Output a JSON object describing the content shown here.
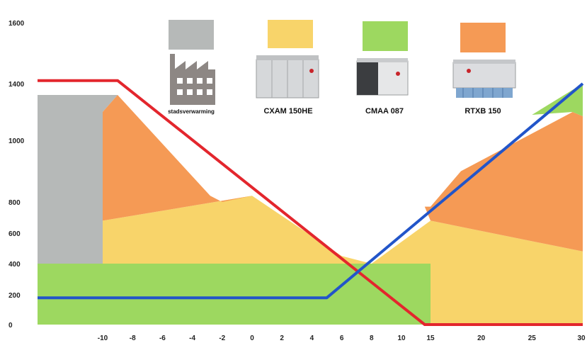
{
  "chart_data": {
    "type": "area",
    "title": "",
    "xlabel": "",
    "ylabel": "",
    "x_ticks": [
      -10,
      -8,
      -6,
      -4,
      -2,
      0,
      2,
      4,
      6,
      8,
      10,
      15,
      20,
      25,
      30
    ],
    "y_ticks": [
      0,
      200,
      400,
      600,
      800,
      1000,
      1400,
      1600
    ],
    "xlim": [
      -12,
      30
    ],
    "ylim": [
      0,
      1600
    ],
    "grid": false,
    "legend_position": "top",
    "legend": [
      {
        "label": "stadsverwarming",
        "color": "#b6b9b8",
        "icon": "factory-icon"
      },
      {
        "label": "CXAM 150HE",
        "color": "#f8d46a",
        "icon": "chiller-cxam-icon"
      },
      {
        "label": "CMAA 087",
        "color": "#9dd860",
        "icon": "chiller-cmaa-icon"
      },
      {
        "label": "RTXB 150",
        "color": "#f59a55",
        "icon": "chiller-rtxb-icon"
      }
    ],
    "areas": [
      {
        "label": "CMAA 087",
        "color": "#9dd860",
        "points": [
          [
            -12,
            0
          ],
          [
            15,
            0
          ],
          [
            15,
            400
          ],
          [
            -12,
            400
          ]
        ]
      },
      {
        "label": "CXAM 150HE",
        "color": "#f8d46a",
        "points": [
          [
            -10,
            400
          ],
          [
            -10,
            680
          ],
          [
            0,
            820
          ],
          [
            0,
            400
          ]
        ]
      },
      {
        "label": "CXAM 150HE",
        "color": "#f8d46a",
        "points": [
          [
            0,
            400
          ],
          [
            0,
            820
          ],
          [
            6,
            450
          ],
          [
            8,
            400
          ]
        ]
      },
      {
        "label": "CXAM 150HE",
        "color": "#f8d46a",
        "points": [
          [
            8,
            400
          ],
          [
            15,
            680
          ],
          [
            30,
            480
          ],
          [
            30,
            0
          ],
          [
            15,
            0
          ],
          [
            15,
            400
          ]
        ]
      },
      {
        "label": "stadsverwarming",
        "color": "#b6b9b8",
        "points": [
          [
            -12,
            400
          ],
          [
            -12,
            1320
          ],
          [
            -9,
            1320
          ],
          [
            -10,
            1200
          ],
          [
            -10,
            400
          ]
        ]
      },
      {
        "label": "RTXB 150",
        "color": "#f59a55",
        "points": [
          [
            -10,
            680
          ],
          [
            -10,
            1200
          ],
          [
            -9,
            1320
          ],
          [
            -2.8,
            820
          ],
          [
            -2,
            800
          ],
          [
            0,
            820
          ]
        ]
      },
      {
        "label": "RTXB 150",
        "color": "#f59a55",
        "points": [
          [
            15,
            770
          ],
          [
            18,
            900
          ],
          [
            29,
            1200
          ],
          [
            30,
            1170
          ],
          [
            30,
            480
          ],
          [
            15,
            680
          ],
          [
            14,
            770
          ]
        ]
      },
      {
        "label": "CMAA 087",
        "color": "#9dd860",
        "points": [
          [
            25,
            1180
          ],
          [
            30,
            1400
          ],
          [
            30,
            1170
          ],
          [
            29,
            1200
          ]
        ]
      }
    ],
    "series": [
      {
        "color": "#e3262d",
        "points": [
          [
            -12,
            1410
          ],
          [
            -9,
            1410
          ],
          [
            14,
            0
          ],
          [
            30,
            0
          ]
        ]
      },
      {
        "color": "#2255c9",
        "points": [
          [
            -12,
            180
          ],
          [
            5,
            180
          ],
          [
            30,
            1400
          ]
        ]
      }
    ]
  }
}
